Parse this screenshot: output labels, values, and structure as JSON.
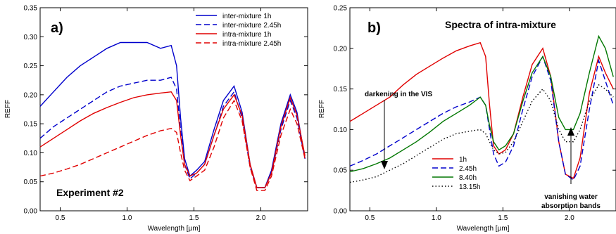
{
  "chart_data": [
    {
      "type": "line",
      "panel_label": "a)",
      "annotations": [
        "Experiment #2"
      ],
      "xlabel": "Wavelength [µm]",
      "ylabel": "REFF",
      "xlim": [
        0.35,
        2.35
      ],
      "ylim": [
        0.0,
        0.35
      ],
      "xticks": [
        "0.5",
        "1.0",
        "1.5",
        "2.0"
      ],
      "xtick_values": [
        0.5,
        1.0,
        1.5,
        2.0
      ],
      "yticks": [
        "0.00",
        "0.05",
        "0.10",
        "0.15",
        "0.20",
        "0.25",
        "0.30",
        "0.35"
      ],
      "ytick_values": [
        0,
        0.05,
        0.1,
        0.15,
        0.2,
        0.25,
        0.3,
        0.35
      ],
      "legend_placement": "top-right",
      "series": [
        {
          "name": "inter-mixture 1h",
          "color": "#0000cc",
          "dash": "solid",
          "x": [
            0.35,
            0.45,
            0.55,
            0.65,
            0.75,
            0.85,
            0.95,
            1.05,
            1.15,
            1.25,
            1.33,
            1.37,
            1.4,
            1.43,
            1.47,
            1.52,
            1.58,
            1.65,
            1.72,
            1.8,
            1.86,
            1.92,
            1.97,
            2.03,
            2.08,
            2.15,
            2.22,
            2.27,
            2.33
          ],
          "y": [
            0.18,
            0.205,
            0.23,
            0.25,
            0.265,
            0.28,
            0.29,
            0.29,
            0.29,
            0.28,
            0.285,
            0.25,
            0.16,
            0.09,
            0.06,
            0.07,
            0.085,
            0.14,
            0.19,
            0.215,
            0.17,
            0.08,
            0.04,
            0.04,
            0.07,
            0.15,
            0.2,
            0.17,
            0.09
          ]
        },
        {
          "name": "inter-mixture 2.45h",
          "color": "#0000cc",
          "dash": "dashed",
          "x": [
            0.35,
            0.45,
            0.55,
            0.65,
            0.75,
            0.85,
            0.95,
            1.05,
            1.15,
            1.25,
            1.33,
            1.37,
            1.4,
            1.43,
            1.47,
            1.52,
            1.58,
            1.65,
            1.72,
            1.8,
            1.86,
            1.92,
            1.97,
            2.03,
            2.08,
            2.15,
            2.22,
            2.27,
            2.33
          ],
          "y": [
            0.125,
            0.145,
            0.16,
            0.175,
            0.19,
            0.205,
            0.215,
            0.22,
            0.225,
            0.225,
            0.23,
            0.21,
            0.14,
            0.08,
            0.055,
            0.065,
            0.08,
            0.13,
            0.18,
            0.205,
            0.16,
            0.075,
            0.04,
            0.04,
            0.065,
            0.14,
            0.19,
            0.16,
            0.09
          ]
        },
        {
          "name": "intra-mixture 1h",
          "color": "#e00000",
          "dash": "solid",
          "x": [
            0.35,
            0.45,
            0.55,
            0.65,
            0.75,
            0.85,
            0.95,
            1.05,
            1.15,
            1.25,
            1.33,
            1.37,
            1.4,
            1.43,
            1.47,
            1.52,
            1.58,
            1.65,
            1.72,
            1.8,
            1.86,
            1.92,
            1.97,
            2.03,
            2.08,
            2.15,
            2.22,
            2.27,
            2.33
          ],
          "y": [
            0.11,
            0.125,
            0.14,
            0.155,
            0.168,
            0.178,
            0.187,
            0.195,
            0.2,
            0.203,
            0.205,
            0.19,
            0.13,
            0.08,
            0.06,
            0.065,
            0.08,
            0.13,
            0.175,
            0.2,
            0.165,
            0.08,
            0.04,
            0.04,
            0.065,
            0.145,
            0.195,
            0.165,
            0.095
          ]
        },
        {
          "name": "intra-mixture 2.45h",
          "color": "#e00000",
          "dash": "dashed",
          "x": [
            0.35,
            0.45,
            0.55,
            0.65,
            0.75,
            0.85,
            0.95,
            1.05,
            1.15,
            1.25,
            1.33,
            1.37,
            1.4,
            1.43,
            1.47,
            1.52,
            1.58,
            1.65,
            1.72,
            1.8,
            1.86,
            1.92,
            1.97,
            2.03,
            2.08,
            2.15,
            2.22,
            2.27,
            2.33
          ],
          "y": [
            0.06,
            0.065,
            0.072,
            0.08,
            0.09,
            0.1,
            0.11,
            0.12,
            0.13,
            0.138,
            0.142,
            0.135,
            0.1,
            0.07,
            0.052,
            0.06,
            0.07,
            0.11,
            0.16,
            0.19,
            0.155,
            0.075,
            0.035,
            0.035,
            0.06,
            0.13,
            0.175,
            0.15,
            0.09
          ]
        }
      ]
    },
    {
      "type": "line",
      "panel_label": "b)",
      "title": "Spectra of intra-mixture",
      "annotations": [
        "darkening in the VIS",
        "vanishing water",
        "absorption bands"
      ],
      "xlabel": "Wavelength [µm]",
      "ylabel": "REFF",
      "xlim": [
        0.35,
        2.35
      ],
      "ylim": [
        0.0,
        0.25
      ],
      "xticks": [
        "0.5",
        "1.0",
        "1.5",
        "2.0"
      ],
      "xtick_values": [
        0.5,
        1.0,
        1.5,
        2.0
      ],
      "yticks": [
        "0.00",
        "0.05",
        "0.10",
        "0.15",
        "0.20",
        "0.25"
      ],
      "ytick_values": [
        0,
        0.05,
        0.1,
        0.15,
        0.2,
        0.25
      ],
      "legend_placement": "bottom-center",
      "series": [
        {
          "name": "1h",
          "color": "#e00000",
          "dash": "solid",
          "x": [
            0.35,
            0.45,
            0.55,
            0.65,
            0.75,
            0.85,
            0.95,
            1.05,
            1.15,
            1.25,
            1.33,
            1.37,
            1.4,
            1.43,
            1.47,
            1.52,
            1.58,
            1.65,
            1.72,
            1.8,
            1.86,
            1.92,
            1.97,
            2.03,
            2.08,
            2.15,
            2.22,
            2.27,
            2.33
          ],
          "y": [
            0.11,
            0.12,
            0.13,
            0.14,
            0.155,
            0.168,
            0.178,
            0.188,
            0.197,
            0.203,
            0.207,
            0.19,
            0.13,
            0.08,
            0.07,
            0.075,
            0.095,
            0.14,
            0.18,
            0.2,
            0.165,
            0.085,
            0.045,
            0.04,
            0.065,
            0.145,
            0.19,
            0.17,
            0.15
          ]
        },
        {
          "name": "2.45h",
          "color": "#0000cc",
          "dash": "dashed",
          "x": [
            0.35,
            0.45,
            0.55,
            0.65,
            0.75,
            0.85,
            0.95,
            1.05,
            1.15,
            1.25,
            1.33,
            1.37,
            1.4,
            1.43,
            1.47,
            1.52,
            1.58,
            1.65,
            1.72,
            1.8,
            1.86,
            1.92,
            1.97,
            2.03,
            2.08,
            2.15,
            2.22,
            2.27,
            2.33
          ],
          "y": [
            0.055,
            0.062,
            0.07,
            0.08,
            0.09,
            0.1,
            0.11,
            0.12,
            0.128,
            0.134,
            0.14,
            0.13,
            0.1,
            0.07,
            0.055,
            0.06,
            0.08,
            0.125,
            0.165,
            0.19,
            0.16,
            0.085,
            0.045,
            0.038,
            0.055,
            0.125,
            0.185,
            0.16,
            0.13
          ]
        },
        {
          "name": "8.40h",
          "color": "#007700",
          "dash": "solid",
          "x": [
            0.35,
            0.45,
            0.55,
            0.65,
            0.75,
            0.85,
            0.95,
            1.05,
            1.15,
            1.25,
            1.33,
            1.37,
            1.4,
            1.43,
            1.47,
            1.52,
            1.58,
            1.65,
            1.72,
            1.8,
            1.86,
            1.92,
            1.97,
            2.03,
            2.08,
            2.15,
            2.22,
            2.27,
            2.33
          ],
          "y": [
            0.048,
            0.052,
            0.058,
            0.065,
            0.075,
            0.085,
            0.097,
            0.11,
            0.12,
            0.13,
            0.14,
            0.13,
            0.105,
            0.085,
            0.075,
            0.08,
            0.095,
            0.135,
            0.17,
            0.19,
            0.165,
            0.115,
            0.1,
            0.1,
            0.12,
            0.17,
            0.215,
            0.2,
            0.165
          ]
        },
        {
          "name": "13.15h",
          "color": "#000000",
          "dash": "dotted",
          "x": [
            0.35,
            0.45,
            0.55,
            0.65,
            0.75,
            0.85,
            0.95,
            1.05,
            1.15,
            1.25,
            1.33,
            1.37,
            1.4,
            1.43,
            1.47,
            1.52,
            1.58,
            1.65,
            1.72,
            1.8,
            1.86,
            1.92,
            1.97,
            2.03,
            2.08,
            2.15,
            2.22,
            2.27,
            2.33
          ],
          "y": [
            0.035,
            0.038,
            0.042,
            0.05,
            0.058,
            0.068,
            0.078,
            0.088,
            0.095,
            0.098,
            0.1,
            0.095,
            0.085,
            0.075,
            0.07,
            0.072,
            0.085,
            0.11,
            0.135,
            0.15,
            0.135,
            0.1,
            0.085,
            0.085,
            0.1,
            0.135,
            0.155,
            0.15,
            0.14
          ]
        }
      ]
    }
  ]
}
